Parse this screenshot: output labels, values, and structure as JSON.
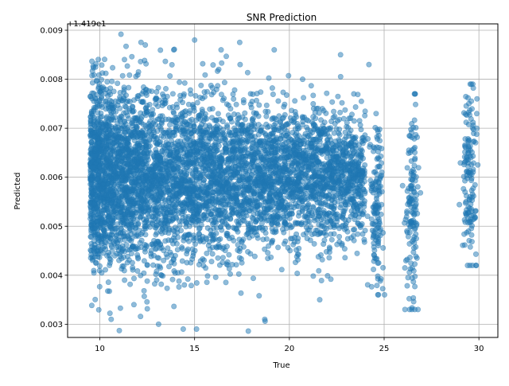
{
  "chart_data": {
    "type": "scatter",
    "title": "SNR Prediction",
    "xlabel": "True",
    "ylabel": "Predicted",
    "y_offset_text": "+1.419e1",
    "xlim": [
      8.3,
      31.0
    ],
    "ylim": [
      0.00273,
      0.00913
    ],
    "x_ticks": [
      10,
      15,
      20,
      25,
      30
    ],
    "x_tick_labels": [
      "10",
      "15",
      "20",
      "25",
      "30"
    ],
    "y_ticks": [
      0.003,
      0.004,
      0.005,
      0.006,
      0.007,
      0.008,
      0.009
    ],
    "y_tick_labels": [
      "0.003",
      "0.004",
      "0.005",
      "0.006",
      "0.007",
      "0.008",
      "0.009"
    ],
    "grid": true,
    "marker_color": "#1f77b4",
    "marker_alpha": 0.5,
    "distribution": {
      "note_sample": "dense cloud of predicted values around 0.006 for true SNR 9.5–24, plus vertical clusters at discrete SNR values",
      "dense_range_x": [
        9.5,
        24.0
      ],
      "dense_center_y": 0.0058,
      "clusters": [
        {
          "x": 24.6,
          "y_min": 0.0036,
          "y_max": 0.0073
        },
        {
          "x": 26.5,
          "y_min": 0.0033,
          "y_max": 0.0077
        },
        {
          "x": 29.5,
          "y_min": 0.0042,
          "y_max": 0.0079
        }
      ],
      "example_points": [
        [
          9.9,
          0.0051
        ],
        [
          10.2,
          0.0078
        ],
        [
          10.6,
          0.0031
        ],
        [
          11.3,
          0.0084
        ],
        [
          11.8,
          0.0034
        ],
        [
          12.4,
          0.0087
        ],
        [
          13.1,
          0.003
        ],
        [
          13.9,
          0.0086
        ],
        [
          14.4,
          0.0029
        ],
        [
          15.0,
          0.0088
        ],
        [
          15.1,
          0.0029
        ],
        [
          16.4,
          0.0086
        ],
        [
          17.4,
          0.0083
        ],
        [
          18.7,
          0.0031
        ],
        [
          19.2,
          0.0086
        ],
        [
          20.7,
          0.008
        ],
        [
          21.6,
          0.0035
        ],
        [
          22.7,
          0.0085
        ],
        [
          23.4,
          0.0077
        ],
        [
          24.2,
          0.0083
        ],
        [
          26.1,
          0.0033
        ],
        [
          26.6,
          0.0077
        ],
        [
          29.6,
          0.0079
        ],
        [
          29.9,
          0.0076
        ],
        [
          29.4,
          0.0042
        ]
      ]
    }
  }
}
